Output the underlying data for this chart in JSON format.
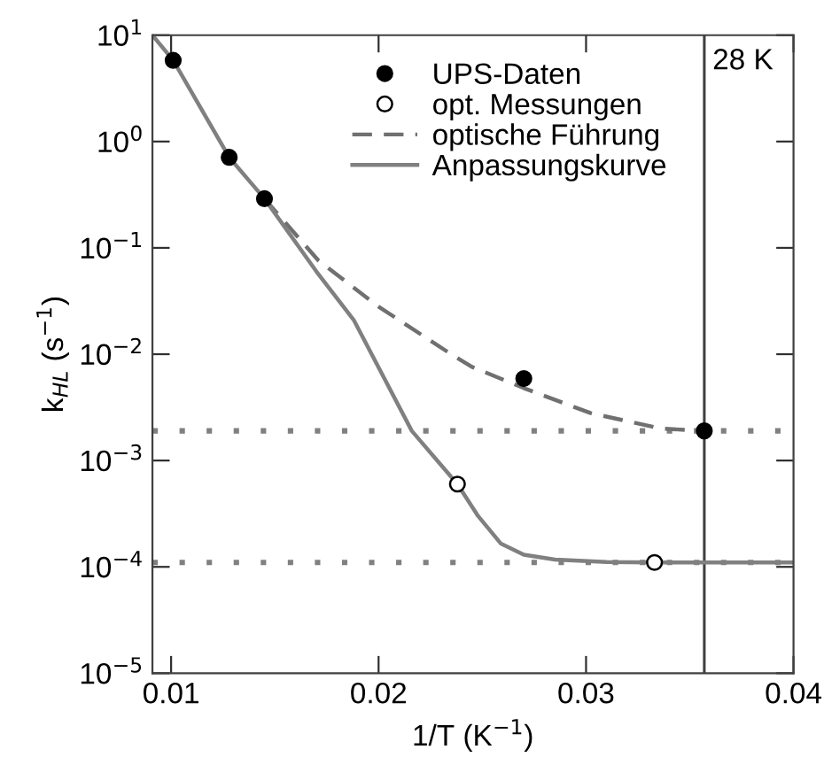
{
  "chart_data": {
    "type": "scatter",
    "xlabel": "1/T (K$^{−1}$)",
    "ylabel": "k$_{HL}$ (s$^{−1}$)",
    "xlim": [
      0.0091,
      0.04
    ],
    "ylim": [
      1e-05,
      10
    ],
    "log": "y",
    "xticks": [
      0.01,
      0.02,
      0.03,
      0.04
    ],
    "yticks": [
      {
        "value": 10,
        "label": "10$^{1}$"
      },
      {
        "value": 1,
        "label": "10$^{0}$"
      },
      {
        "value": 0.1,
        "label": "10$^{−1}$"
      },
      {
        "value": 0.01,
        "label": "10$^{−2}$"
      },
      {
        "value": 0.001,
        "label": "10$^{−3}$"
      },
      {
        "value": 0.0001,
        "label": "10$^{−4}$"
      },
      {
        "value": 1e-05,
        "label": "10$^{−5}$"
      }
    ],
    "grid": false,
    "legend": "top right",
    "series": [
      {
        "name": "UPS-Daten",
        "marker": "circle",
        "color": "#000000",
        "x": [
          0.0101,
          0.0128,
          0.0145,
          0.027,
          0.0357
        ],
        "values": [
          5.8,
          0.71,
          0.29,
          0.0059,
          0.0019
        ]
      },
      {
        "name": "opt. Messungen",
        "marker": "circle",
        "color": "#ffffff",
        "x": [
          0.0238,
          0.0333
        ],
        "values": [
          0.0006,
          0.00011
        ]
      },
      {
        "name": "optische Führung",
        "type": "line",
        "line_style": "dashed",
        "marker": "none",
        "color": "#707070",
        "x": [
          0.0145,
          0.0171,
          0.02,
          0.0235,
          0.0245,
          0.027,
          0.0302,
          0.0336,
          0.0357
        ],
        "values": [
          0.29,
          0.076,
          0.028,
          0.01,
          0.0076,
          0.0048,
          0.0028,
          0.002,
          0.0019
        ]
      },
      {
        "name": "Anpassungskurve",
        "type": "line",
        "line_style": "solid",
        "marker": "none",
        "color": "#808080",
        "x": [
          0.0091,
          0.0101,
          0.0128,
          0.0145,
          0.017,
          0.0188,
          0.0216,
          0.0238,
          0.0248,
          0.0259,
          0.027,
          0.0285,
          0.031,
          0.0333,
          0.036,
          0.04
        ],
        "values": [
          10,
          5.8,
          0.71,
          0.29,
          0.06,
          0.021,
          0.0019,
          0.0006,
          0.0003,
          0.000165,
          0.00013,
          0.000117,
          0.000111,
          0.00011,
          0.00011,
          0.00011
        ]
      }
    ],
    "ref_lines": [
      {
        "axis": "x",
        "value": 0.0357,
        "label": "28 K",
        "color": "#404040",
        "line_style": "solid"
      },
      {
        "axis": "y",
        "value": 0.0019,
        "color": "#808080",
        "line_style": "dotted"
      },
      {
        "axis": "y",
        "value": 0.00011,
        "color": "#808080",
        "line_style": "dotted"
      }
    ]
  }
}
